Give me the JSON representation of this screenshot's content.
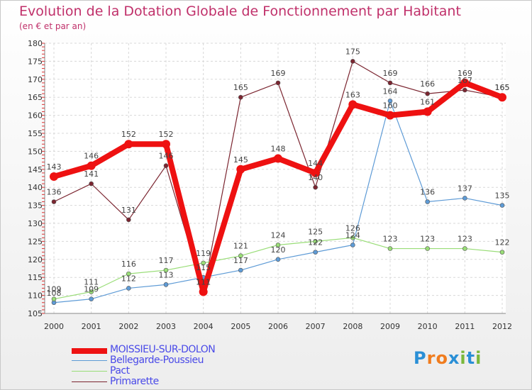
{
  "title": "Evolution de la Dotation Globale de Fonctionnement par Habitant",
  "subtitle": "(en € et par an)",
  "logo": {
    "text": "Proxiti",
    "letters": [
      "P",
      "r",
      "o",
      "x",
      "i",
      "t",
      "i"
    ],
    "letter_colors": [
      "#2a8fd6",
      "#f07c1e",
      "#f07c1e",
      "#2a8fd6",
      "#7ab83c",
      "#2a8fd6",
      "#7ab83c"
    ]
  },
  "chart_data": {
    "type": "line",
    "title": "Evolution de la Dotation Globale de Fonctionnement par Habitant",
    "ylabel": "(en € et par an)",
    "xlabel": "",
    "ylim": [
      105,
      180
    ],
    "yticks": [
      105,
      110,
      115,
      120,
      125,
      130,
      135,
      140,
      145,
      150,
      155,
      160,
      165,
      170,
      175,
      180
    ],
    "categories": [
      "2000",
      "2001",
      "2002",
      "2003",
      "2004",
      "2005",
      "2006",
      "2007",
      "2008",
      "2009",
      "2010",
      "2011",
      "2012"
    ],
    "grid": true,
    "legend_position": "bottom-left",
    "series": [
      {
        "name": "MOISSIEU-SUR-DOLON",
        "color": "#ee1111",
        "emphasis": true,
        "values": [
          143,
          146,
          152,
          152,
          111,
          145,
          148,
          144,
          163,
          160,
          161,
          169,
          165
        ]
      },
      {
        "name": "Bellegarde-Poussieu",
        "color": "#5e9bd6",
        "emphasis": false,
        "values": [
          108,
          109,
          112,
          113,
          115,
          117,
          120,
          122,
          124,
          164,
          136,
          137,
          135
        ]
      },
      {
        "name": "Pact",
        "color": "#99dd77",
        "emphasis": false,
        "values": [
          109,
          111,
          116,
          117,
          119,
          121,
          124,
          125,
          126,
          123,
          123,
          123,
          122
        ]
      },
      {
        "name": "Primarette",
        "color": "#7b2530",
        "emphasis": false,
        "values": [
          136,
          141,
          131,
          146,
          111,
          165,
          169,
          140,
          175,
          169,
          166,
          167,
          165
        ]
      }
    ]
  }
}
